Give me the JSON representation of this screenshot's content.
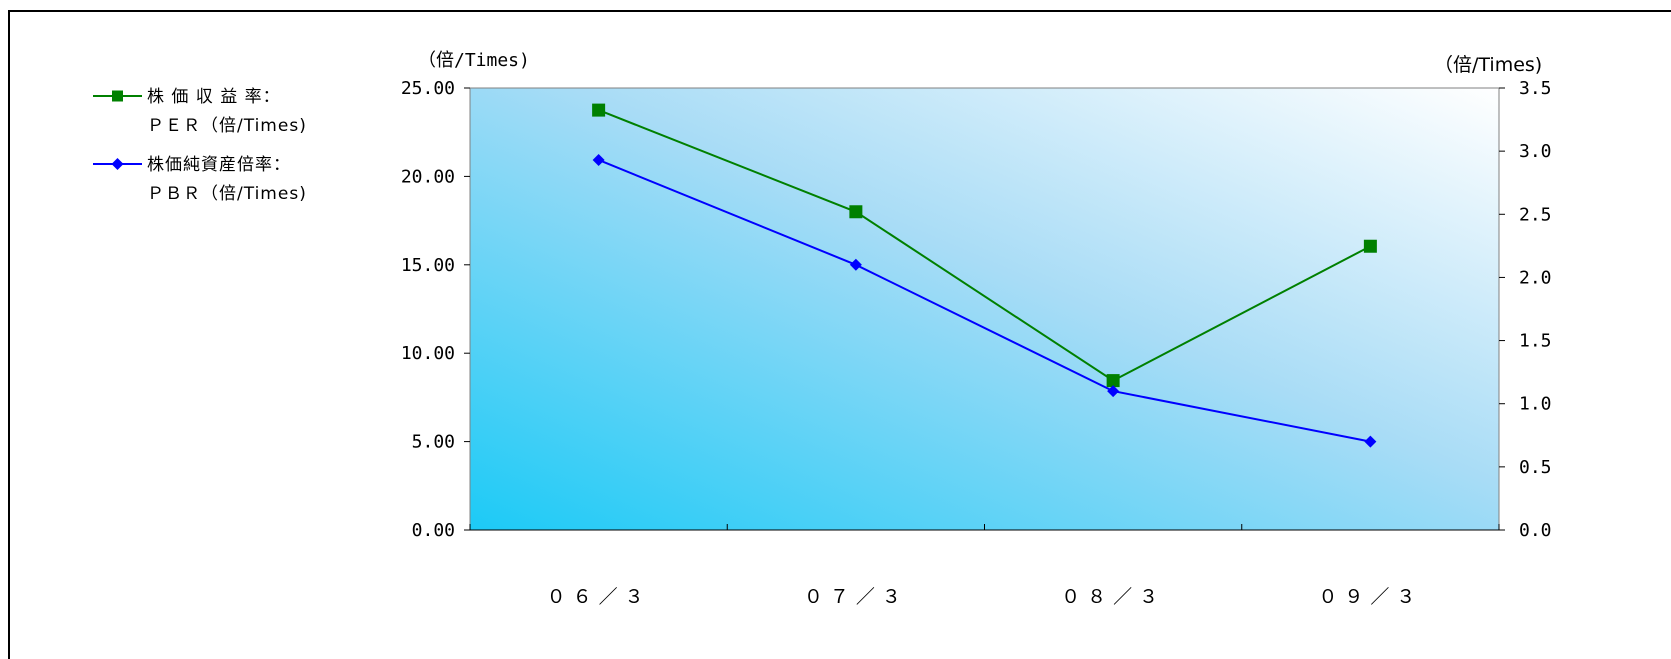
{
  "chart_data": {
    "type": "line",
    "categories": [
      "０６／３",
      "０７／３",
      "０８／３",
      "０９／３"
    ],
    "left_axis": {
      "unit_label": "（倍/Times)",
      "range": [
        0,
        25
      ],
      "ticks": [
        0,
        5,
        10,
        15,
        20,
        25
      ],
      "tick_labels": [
        "0.00",
        "5.00",
        "10.00",
        "15.00",
        "20.00",
        "25.00"
      ]
    },
    "right_axis": {
      "unit_label": "（倍/Times)",
      "range": [
        0,
        3.5
      ],
      "ticks": [
        0,
        0.5,
        1.0,
        1.5,
        2.0,
        2.5,
        3.0,
        3.5
      ],
      "tick_labels": [
        "0.0",
        "0.5",
        "1.0",
        "1.5",
        "2.0",
        "2.5",
        "3.0",
        "3.5"
      ]
    },
    "series": [
      {
        "name_line1": "株 価 収 益 率：",
        "name_line2": "ＰＥＲ（倍/Times)",
        "axis": "left",
        "color": "#008000",
        "marker": "square",
        "values": [
          23.75,
          18.0,
          8.45,
          16.05
        ]
      },
      {
        "name_line1": "株価純資産倍率：",
        "name_line2": "ＰＢＲ（倍/Times)",
        "axis": "right",
        "color": "#0000ff",
        "marker": "diamond",
        "values": [
          2.93,
          2.1,
          1.1,
          0.7
        ]
      }
    ],
    "legend_position": "left",
    "grid": false,
    "plot_background": "gradient cyan to white"
  }
}
